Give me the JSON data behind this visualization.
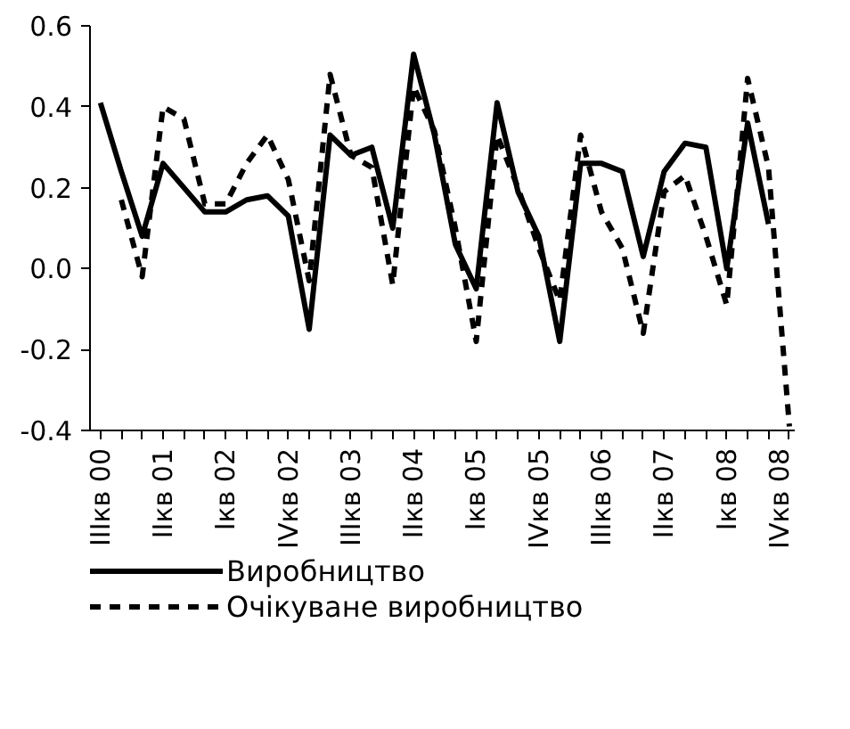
{
  "chart_data": {
    "type": "line",
    "categories": [
      "IIIкв 00",
      null,
      null,
      "IIкв 01",
      null,
      null,
      "Iкв 02",
      null,
      null,
      "IVкв 02",
      null,
      null,
      "IIIкв 03",
      null,
      null,
      "IIкв 04",
      null,
      null,
      "Iкв 05",
      null,
      null,
      "IVкв 05",
      null,
      null,
      "IIIкв 06",
      null,
      null,
      "IIкв 07",
      null,
      null,
      "Iкв 08",
      null,
      null,
      "IVкв 08"
    ],
    "series": [
      {
        "name": "Виробництво",
        "color": "#000000",
        "line_style": "solid",
        "values": [
          0.41,
          0.24,
          0.08,
          0.26,
          0.2,
          0.14,
          0.14,
          0.17,
          0.18,
          0.13,
          -0.15,
          0.33,
          0.28,
          0.3,
          0.1,
          0.53,
          0.33,
          0.06,
          -0.05,
          0.41,
          0.19,
          0.08,
          -0.18,
          0.26,
          0.26,
          0.24,
          0.03,
          0.24,
          0.31,
          0.3,
          0.0,
          0.36,
          0.11,
          null
        ]
      },
      {
        "name": "Очікуване виробництво",
        "color": "#000000",
        "line_style": "dashed",
        "values": [
          null,
          0.17,
          -0.02,
          0.4,
          0.37,
          0.16,
          0.16,
          0.26,
          0.33,
          0.22,
          -0.03,
          0.48,
          0.28,
          0.25,
          -0.04,
          0.45,
          0.34,
          0.1,
          -0.18,
          0.33,
          0.2,
          0.05,
          -0.08,
          0.33,
          0.14,
          0.05,
          -0.16,
          0.19,
          0.23,
          0.08,
          -0.09,
          0.47,
          0.25,
          -0.39
        ]
      }
    ],
    "ylim": [
      -0.4,
      0.6
    ],
    "yticks": [
      {
        "value": -0.4,
        "label": "-0.4"
      },
      {
        "value": -0.2,
        "label": "-0.2"
      },
      {
        "value": 0,
        "label": "0.0"
      },
      {
        "value": 0.2,
        "label": "0.2"
      },
      {
        "value": 0.4,
        "label": "0.4"
      },
      {
        "value": 0.6,
        "label": "0.6"
      }
    ],
    "grid": false,
    "legend": "bottom",
    "marker": "none"
  }
}
